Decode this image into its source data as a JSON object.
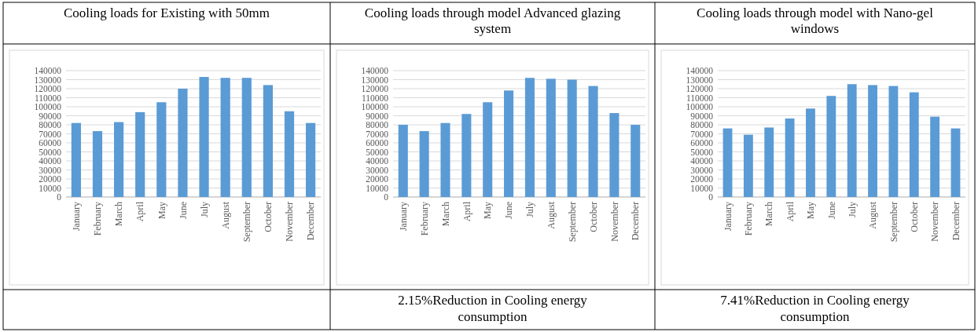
{
  "chart_data": [
    {
      "type": "bar",
      "title": "Cooling loads  for Existing with 50mm",
      "categories": [
        "January",
        "February",
        "March",
        "April",
        "May",
        "June",
        "July",
        "August",
        "September",
        "October",
        "November",
        "December"
      ],
      "values": [
        82000,
        73000,
        83000,
        94000,
        105000,
        120000,
        133000,
        132000,
        132000,
        124000,
        95000,
        82000
      ],
      "color": "#5b9bd5",
      "ylim": [
        0,
        140000
      ],
      "yticks": [
        0,
        10000,
        20000,
        30000,
        40000,
        50000,
        60000,
        70000,
        80000,
        90000,
        100000,
        110000,
        120000,
        130000,
        140000
      ],
      "grid": "y"
    },
    {
      "type": "bar",
      "title": "Cooling loads through model Advanced glazing system",
      "categories": [
        "January",
        "February",
        "March",
        "April",
        "May",
        "June",
        "July",
        "August",
        "September",
        "October",
        "November",
        "December"
      ],
      "values": [
        80000,
        73000,
        82000,
        92000,
        105000,
        118000,
        132000,
        131000,
        130000,
        123000,
        93000,
        80000
      ],
      "color": "#5b9bd5",
      "ylim": [
        0,
        140000
      ],
      "yticks": [
        0,
        10000,
        20000,
        30000,
        40000,
        50000,
        60000,
        70000,
        80000,
        90000,
        100000,
        110000,
        120000,
        130000,
        140000
      ],
      "grid": "y",
      "annotations": [
        "2.15%Reduction in Cooling energy consumption"
      ]
    },
    {
      "type": "bar",
      "title": "Cooling loads through model with Nano-gel windows",
      "categories": [
        "January",
        "February",
        "March",
        "April",
        "May",
        "June",
        "July",
        "August",
        "September",
        "October",
        "November",
        "December"
      ],
      "values": [
        76000,
        69000,
        77000,
        87000,
        98000,
        112000,
        125000,
        124000,
        123000,
        116000,
        89000,
        76000
      ],
      "color": "#5b9bd5",
      "ylim": [
        0,
        140000
      ],
      "yticks": [
        0,
        10000,
        20000,
        30000,
        40000,
        50000,
        60000,
        70000,
        80000,
        90000,
        100000,
        110000,
        120000,
        130000,
        140000
      ],
      "grid": "y",
      "annotations": [
        "7.41%Reduction in Cooling energy consumption"
      ]
    }
  ]
}
